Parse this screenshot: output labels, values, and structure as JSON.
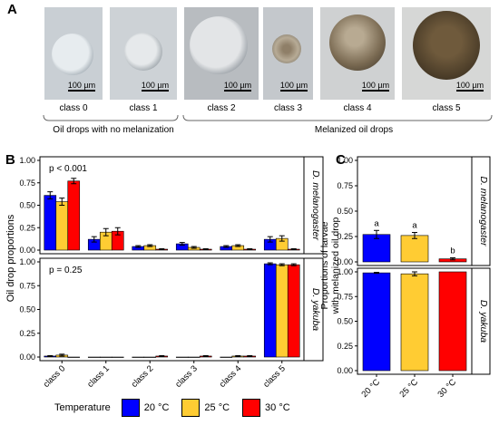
{
  "panel_a": {
    "letter": "A",
    "images": [
      {
        "label": "class 0",
        "scale": "100 µm"
      },
      {
        "label": "class 1",
        "scale": "100 µm"
      },
      {
        "label": "class 2",
        "scale": "100 µm"
      },
      {
        "label": "class 3",
        "scale": "100 µm"
      },
      {
        "label": "class 4",
        "scale": "100 µm"
      },
      {
        "label": "class 5",
        "scale": "100 µm"
      }
    ],
    "groups": [
      "Oil drops with no melanization",
      "Melanized oil drops"
    ]
  },
  "legend": {
    "title": "Temperature",
    "items": [
      {
        "label": "20 °C",
        "color": "#0000ff"
      },
      {
        "label": "25 °C",
        "color": "#ffcc33"
      },
      {
        "label": "30 °C",
        "color": "#ff0000"
      }
    ]
  },
  "chart_data": [
    {
      "panel": "B",
      "type": "bar",
      "ylabel": "Oil drop proportions",
      "categories": [
        "class 0",
        "class 1",
        "class 2",
        "class 3",
        "class 4",
        "class 5"
      ],
      "ylim": [
        0,
        1
      ],
      "yticks": [
        "0.00",
        "0.25",
        "0.50",
        "0.75",
        "1.00"
      ],
      "facets": [
        {
          "strip": "D. melanogaster",
          "annotation": "p < 0.001",
          "series": [
            {
              "name": "20 °C",
              "values": [
                0.61,
                0.12,
                0.04,
                0.07,
                0.04,
                0.12
              ],
              "errors": [
                0.04,
                0.03,
                0.01,
                0.015,
                0.01,
                0.03
              ]
            },
            {
              "name": "25 °C",
              "values": [
                0.54,
                0.2,
                0.05,
                0.03,
                0.05,
                0.13
              ],
              "errors": [
                0.04,
                0.04,
                0.01,
                0.01,
                0.01,
                0.03
              ]
            },
            {
              "name": "30 °C",
              "values": [
                0.77,
                0.21,
                0.01,
                0.01,
                0.01,
                0.01
              ],
              "errors": [
                0.03,
                0.04,
                0.005,
                0.005,
                0.005,
                0.005
              ]
            }
          ]
        },
        {
          "strip": "D. yakuba",
          "annotation": "p = 0.25",
          "series": [
            {
              "name": "20 °C",
              "values": [
                0.01,
                0.0,
                0.0,
                0.0,
                0.0,
                0.98
              ],
              "errors": [
                0.005,
                0.0,
                0.0,
                0.0,
                0.0,
                0.01
              ]
            },
            {
              "name": "25 °C",
              "values": [
                0.02,
                0.0,
                0.0,
                0.0,
                0.01,
                0.97
              ],
              "errors": [
                0.01,
                0.0,
                0.0,
                0.0,
                0.005,
                0.01
              ]
            },
            {
              "name": "30 °C",
              "values": [
                0.0,
                0.0,
                0.01,
                0.01,
                0.01,
                0.97
              ],
              "errors": [
                0.0,
                0.0,
                0.005,
                0.005,
                0.005,
                0.01
              ]
            }
          ]
        }
      ]
    },
    {
      "panel": "C",
      "type": "bar",
      "ylabel": "Proportions of larvae with melanized oil drop",
      "categories": [
        "20 °C",
        "25 °C",
        "30 °C"
      ],
      "ylim": [
        0,
        1
      ],
      "yticks": [
        "0.00",
        "0.25",
        "0.50",
        "0.75",
        "1.00"
      ],
      "facets": [
        {
          "strip": "D. melanogaster",
          "values": [
            0.27,
            0.26,
            0.03
          ],
          "errors": [
            0.04,
            0.03,
            0.01
          ],
          "letters": [
            "a",
            "a",
            "b"
          ]
        },
        {
          "strip": "D. yakuba",
          "values": [
            0.99,
            0.98,
            1.0
          ],
          "errors": [
            0.005,
            0.02,
            0.0
          ],
          "letters": []
        }
      ]
    }
  ]
}
